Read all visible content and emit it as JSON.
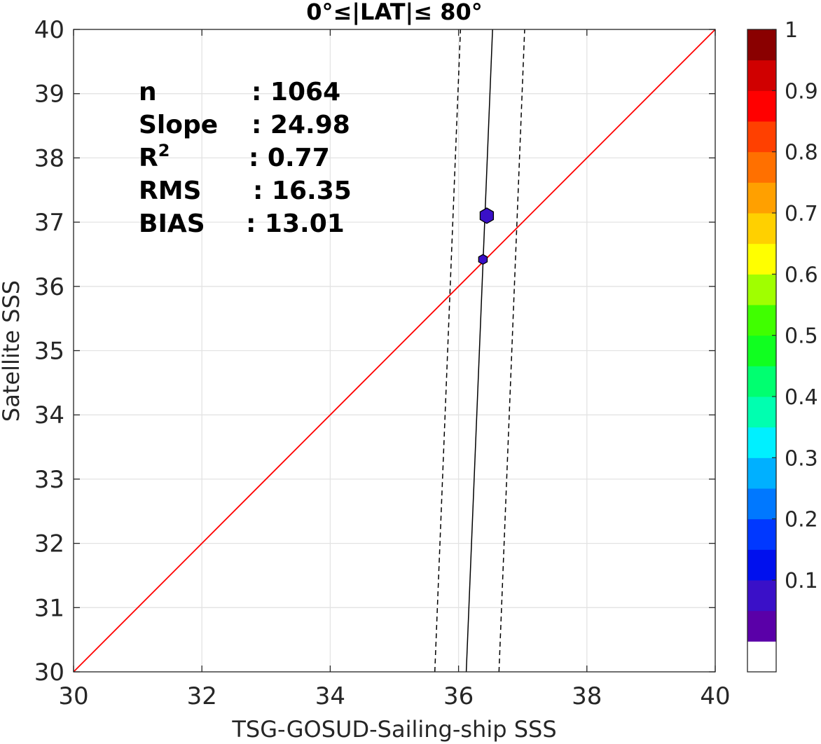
{
  "chart_data": {
    "type": "scatter",
    "title": "0°≤|LAT|≤ 80°",
    "xlabel": "TSG-GOSUD-Sailing-ship SSS",
    "ylabel": "Satellite SSS",
    "xlim": [
      30,
      40
    ],
    "ylim": [
      30,
      40
    ],
    "x_ticks": [
      "30",
      "32",
      "34",
      "36",
      "38",
      "40"
    ],
    "y_ticks": [
      "30",
      "31",
      "32",
      "33",
      "34",
      "35",
      "36",
      "37",
      "38",
      "39",
      "40"
    ],
    "grid": true,
    "points": [
      {
        "x": 36.44,
        "y": 37.1,
        "density": 0.08
      },
      {
        "x": 36.38,
        "y": 36.42,
        "density": 0.08
      }
    ],
    "identity_line": {
      "from": [
        30,
        30
      ],
      "to": [
        40,
        40
      ],
      "color": "#ff0000"
    },
    "fit_line": {
      "y_at_x1": [
        36.12,
        30
      ],
      "y_at_x2": [
        36.53,
        40
      ]
    },
    "fit_bounds": [
      {
        "y_at_x1": [
          35.63,
          30
        ],
        "y_at_x2": [
          36.03,
          40
        ]
      },
      {
        "y_at_x1": [
          36.63,
          30
        ],
        "y_at_x2": [
          37.03,
          40
        ]
      }
    ],
    "stats": [
      {
        "label": "n",
        "sep": ": 1064"
      },
      {
        "label": "Slope",
        "sep": ": 24.98"
      },
      {
        "label": "R",
        "sup": "2",
        "sep": ": 0.77"
      },
      {
        "label": "RMS",
        "sep": ": 16.35"
      },
      {
        "label": "BIAS",
        "sep": ": 13.01"
      }
    ],
    "colorbar": {
      "ticks": [
        "0.1",
        "0.2",
        "0.3",
        "0.4",
        "0.5",
        "0.6",
        "0.7",
        "0.8",
        "0.9",
        "1"
      ],
      "colors": [
        "#ffffff",
        "#5a00a8",
        "#3a10c8",
        "#0010ee",
        "#0038ff",
        "#0078ff",
        "#00b0ff",
        "#00f0ff",
        "#00ffb0",
        "#00ff70",
        "#10ff20",
        "#40ff00",
        "#a0ff00",
        "#ffff00",
        "#ffd000",
        "#ffa000",
        "#ff7000",
        "#ff4000",
        "#ff0000",
        "#d00000",
        "#8a0000"
      ]
    }
  }
}
